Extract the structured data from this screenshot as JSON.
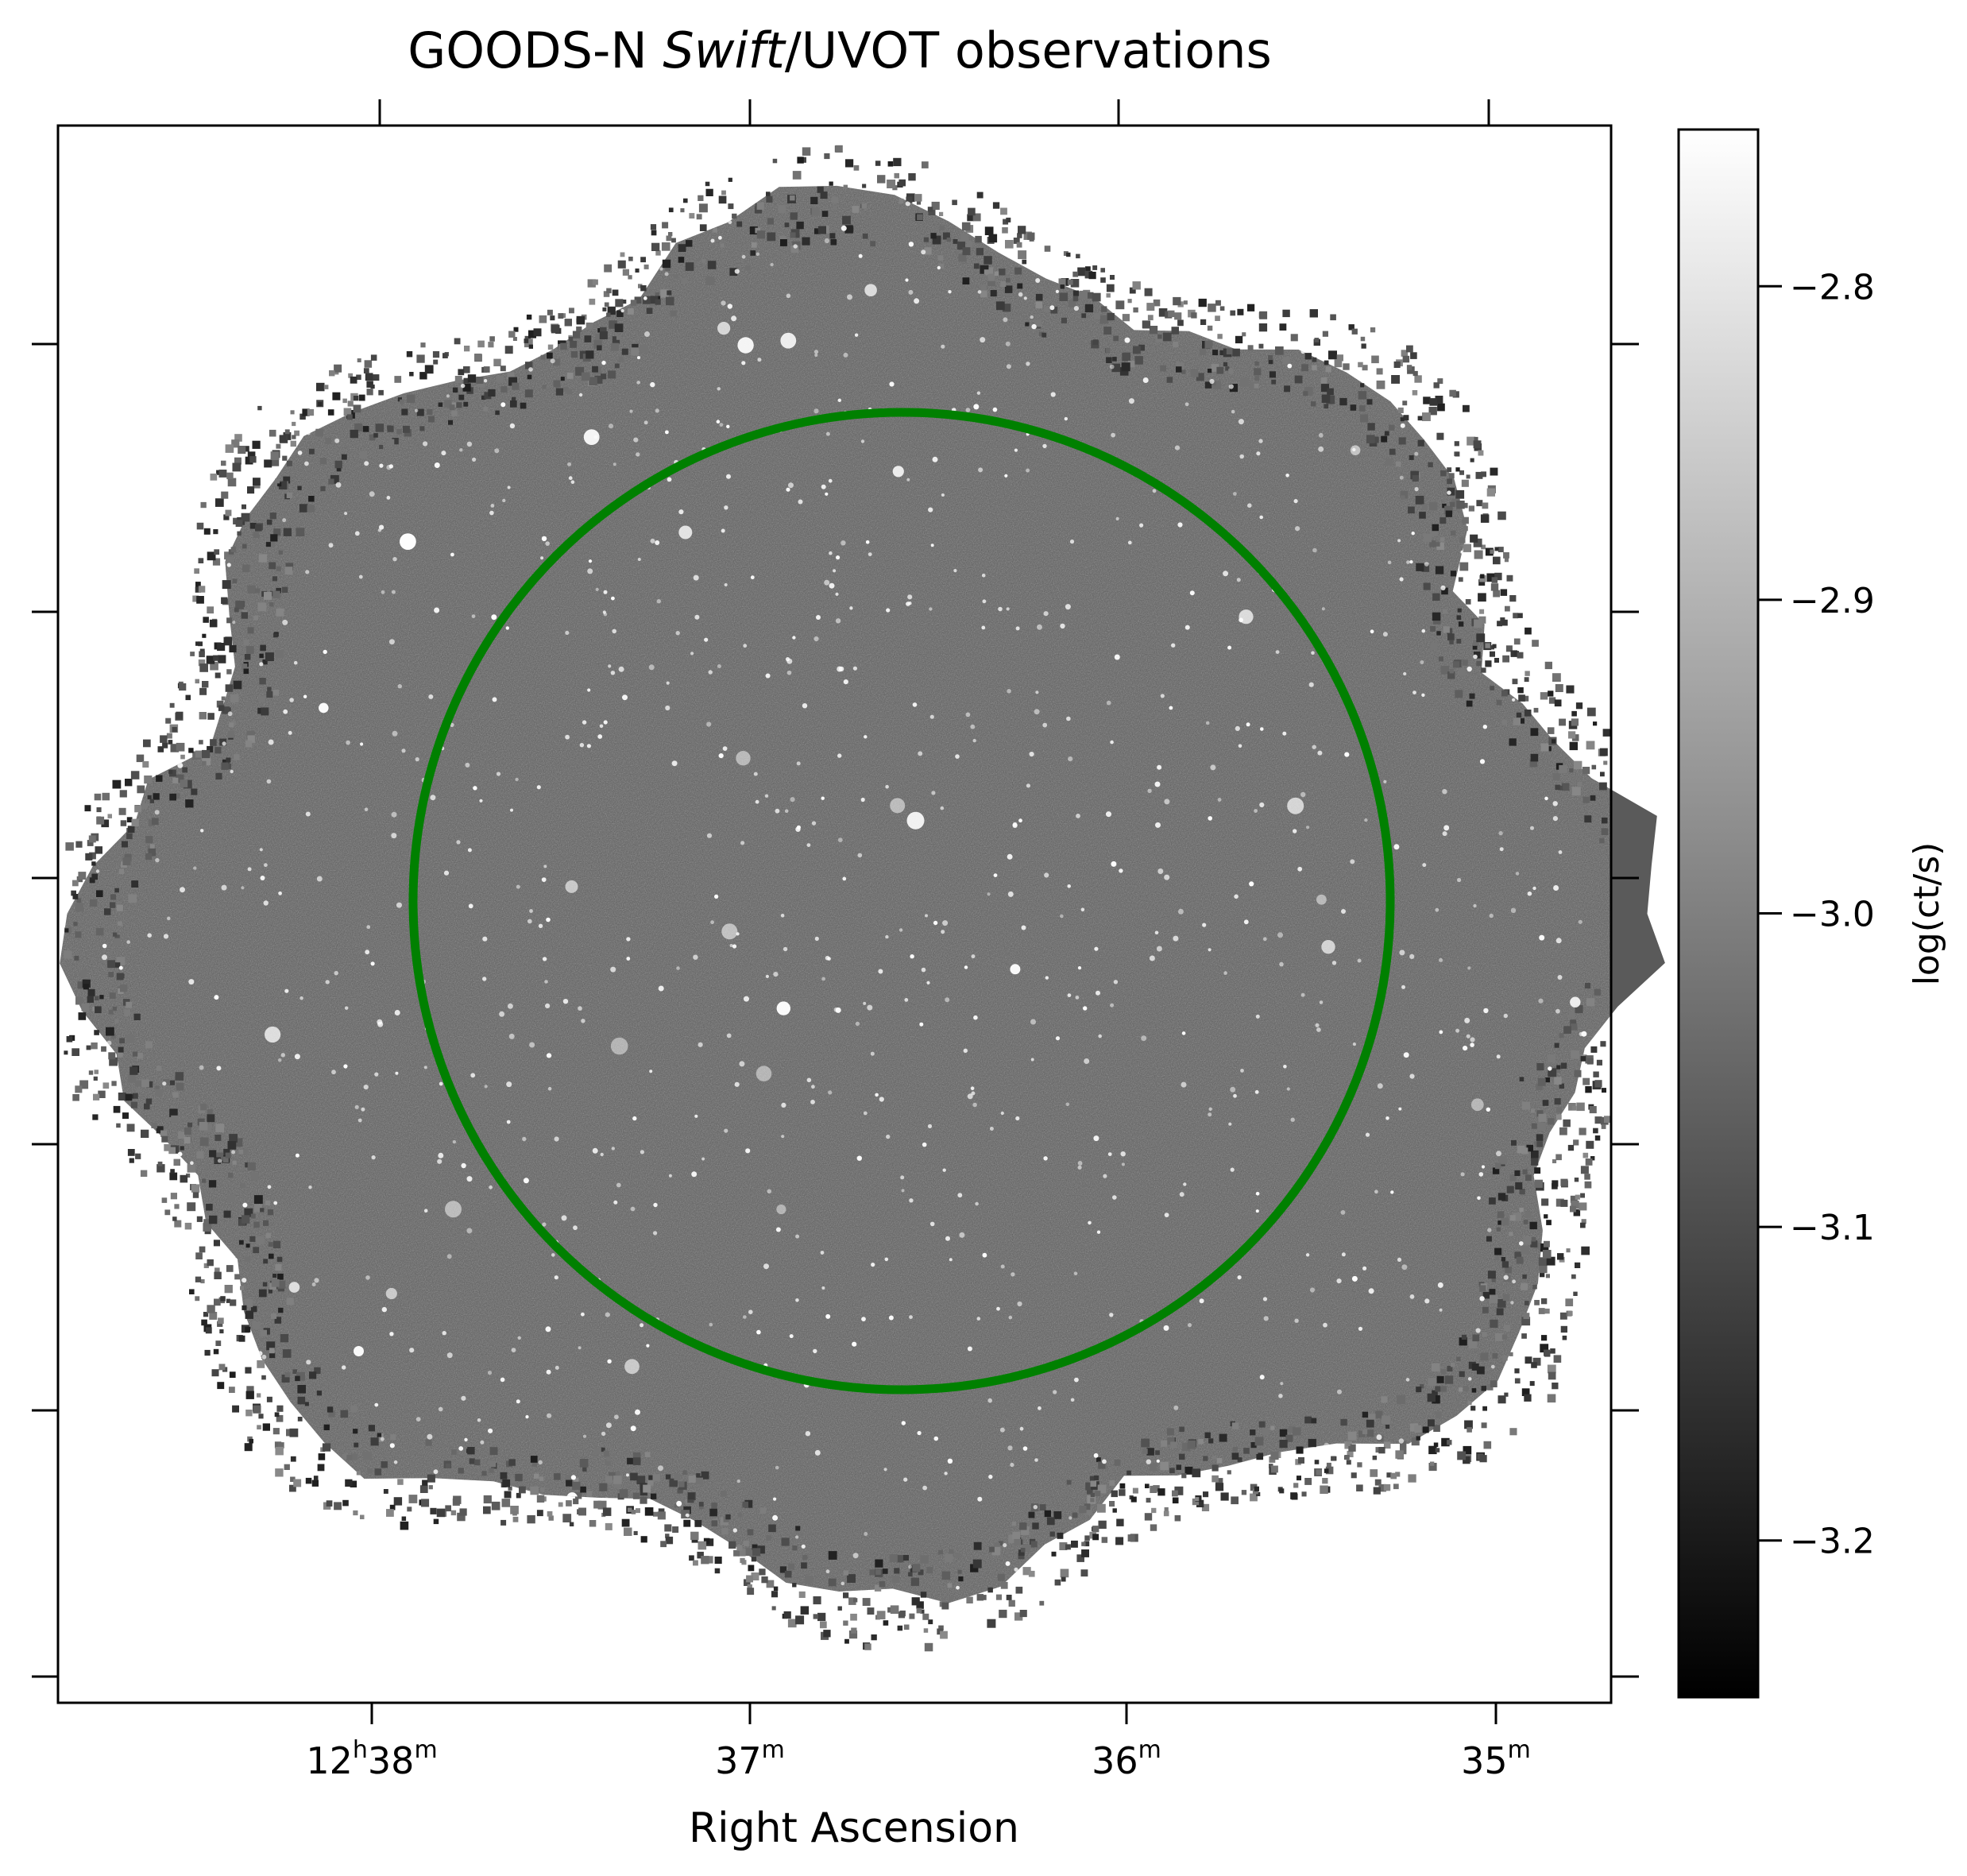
{
  "figure": {
    "title_prefix": "GOODS-N ",
    "title_italic": "Swift",
    "title_suffix": "/UVOT observations",
    "xlabel": "Right Ascension",
    "x_ticks": [
      {
        "h": "12",
        "hs": "h",
        "m": "38",
        "ms": "m"
      },
      {
        "m": "37",
        "ms": "m"
      },
      {
        "m": "36",
        "ms": "m"
      },
      {
        "m": "35",
        "ms": "m"
      }
    ],
    "colorbar": {
      "label": "log(ct/s)",
      "ticks": [
        "−2.8",
        "−2.9",
        "−3.0",
        "−3.1",
        "−3.2"
      ],
      "tick_values": [
        -2.8,
        -2.9,
        -3.0,
        -3.1,
        -3.2
      ],
      "range": [
        -3.25,
        -2.75
      ],
      "colormap": "gray"
    },
    "overlay": {
      "shape": "circle",
      "color": "#008000"
    },
    "image": {
      "background": "#ffffff",
      "field_color": "#5a5a5a",
      "sources_color": "#ffffff"
    }
  }
}
